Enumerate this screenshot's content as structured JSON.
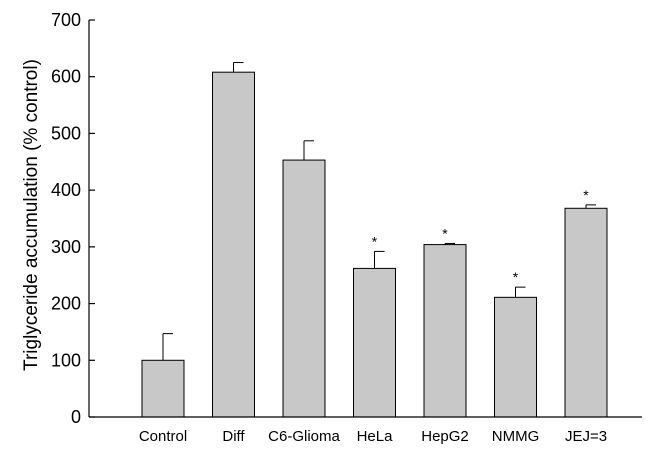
{
  "chart_data": {
    "type": "bar",
    "ylabel": "Triglyceride accumulation (% control)",
    "xlabel": "",
    "ylim": [
      0,
      700
    ],
    "yticks": [
      0,
      100,
      200,
      300,
      400,
      500,
      600,
      700
    ],
    "categories": [
      "Control",
      "Diff",
      "C6-Glioma",
      "HeLa",
      "HepG2",
      "NMMG",
      "JEJ=3"
    ],
    "values": [
      100,
      608,
      453,
      262,
      304,
      211,
      368
    ],
    "error": [
      47,
      17,
      34,
      30,
      2,
      18,
      6
    ],
    "significance": [
      "",
      "",
      "",
      "*",
      "*",
      "*",
      "*"
    ],
    "bar_color": "#c8c8c8",
    "bar_edge_color": "#000000",
    "grid": false,
    "legend": "none"
  }
}
